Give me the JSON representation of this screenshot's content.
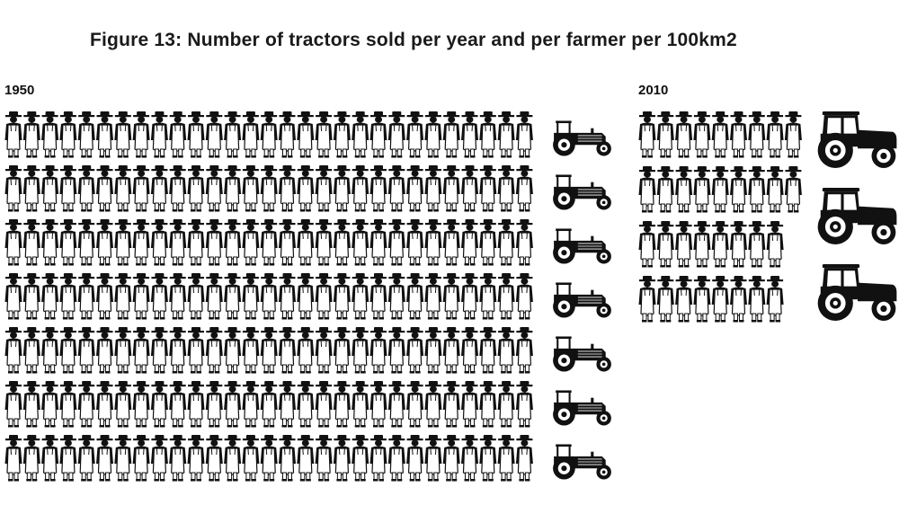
{
  "title": "Figure 13: Number of tractors sold per year and per farmer per 100km2",
  "chart_data": {
    "type": "pictogram",
    "title": "Figure 13: Number of tractors sold per year and per farmer per 100km2",
    "panels": [
      {
        "label": "1950",
        "farmer_rows": [
          29,
          29,
          29,
          29,
          29,
          29,
          29
        ],
        "tractors": 7
      },
      {
        "label": "2010",
        "farmer_rows": [
          9,
          9,
          8,
          8
        ],
        "tractors": 3
      }
    ],
    "icons": {
      "farmer": "farmer-icon",
      "tractor_small": "tractor-icon",
      "tractor_large": "large-tractor-icon"
    },
    "colors": {
      "icon_fill": "#111111",
      "icon_body": "#ffffff",
      "background": "#ffffff"
    }
  }
}
